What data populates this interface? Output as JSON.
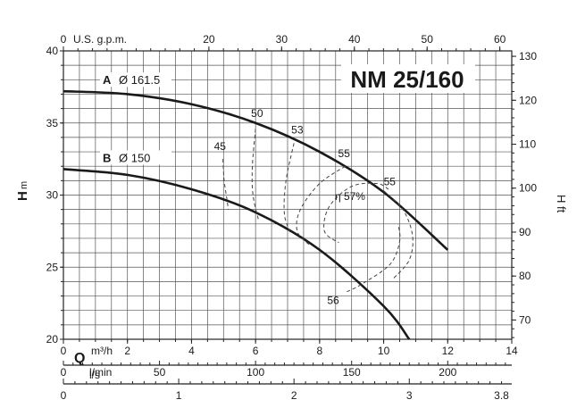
{
  "chart_data": {
    "type": "line",
    "title": "NM 25/160",
    "ylabel_left": "H",
    "ylabel_left_unit": "m",
    "ylabel_right": "H ft",
    "xlabel": "Q",
    "x_unit_primary": "m³/h",
    "grid": true,
    "axes": {
      "x_m3h": {
        "ticks": [
          0,
          2,
          4,
          6,
          8,
          10,
          12,
          14
        ],
        "range": [
          0,
          14
        ]
      },
      "x_gpm": {
        "label": "U.S. g.p.m.",
        "ticks": [
          0,
          20,
          30,
          40,
          50,
          60
        ]
      },
      "x_lmin": {
        "label": "l/min",
        "ticks": [
          0,
          50,
          100,
          150,
          200
        ]
      },
      "x_ls": {
        "label": "l/s",
        "ticks": [
          "0",
          "1",
          "2",
          "3",
          "3.8"
        ]
      },
      "y_m": {
        "ticks": [
          20,
          25,
          30,
          35,
          40
        ],
        "range": [
          20,
          40
        ]
      },
      "y_ft": {
        "ticks": [
          70,
          80,
          90,
          100,
          110,
          120,
          130
        ]
      }
    },
    "series": [
      {
        "name": "A",
        "diameter_label": "Ø 161.5",
        "x": [
          0,
          2,
          4,
          6,
          8,
          10,
          12
        ],
        "y": [
          37.2,
          37.0,
          36.3,
          35.0,
          33.0,
          30.2,
          26.2
        ]
      },
      {
        "name": "B",
        "diameter_label": "Ø 150",
        "x": [
          0,
          2,
          4,
          6,
          8,
          10,
          10.8
        ],
        "y": [
          31.8,
          31.4,
          30.4,
          28.8,
          26.2,
          22.3,
          20.0
        ]
      }
    ],
    "efficiency_curves": [
      {
        "label": "45",
        "x": [
          4.98,
          5.02,
          5.1,
          5.15
        ],
        "y": [
          32.5,
          31.0,
          29.8,
          29.0
        ]
      },
      {
        "label": "50",
        "x": [
          6.0,
          5.9,
          5.92,
          6.1
        ],
        "y": [
          34.6,
          32.0,
          30.0,
          28.2
        ]
      },
      {
        "label": "53",
        "x": [
          7.2,
          6.95,
          6.9,
          7.1
        ],
        "y": [
          33.6,
          31.0,
          28.7,
          27.3
        ]
      },
      {
        "label": "55",
        "x": [
          8.8,
          8.0,
          7.4,
          7.3,
          7.7
        ],
        "y": [
          32.0,
          30.8,
          29.0,
          27.5,
          26.5
        ]
      },
      {
        "label": "55",
        "x": [
          10.0,
          10.6,
          10.9,
          10.8,
          10.3
        ],
        "y": [
          30.3,
          29.0,
          27.2,
          25.5,
          24.2
        ]
      },
      {
        "label": "η 57%",
        "x": [
          10.15,
          9.8,
          9.0,
          8.3,
          8.15,
          8.6
        ],
        "y": [
          30.4,
          30.8,
          30.6,
          29.2,
          27.5,
          26.7
        ]
      },
      {
        "label": "56",
        "x": [
          8.85,
          9.3,
          10.2,
          10.5,
          10.45
        ],
        "y": [
          23.3,
          23.8,
          25.2,
          26.8,
          28.0
        ]
      }
    ]
  }
}
